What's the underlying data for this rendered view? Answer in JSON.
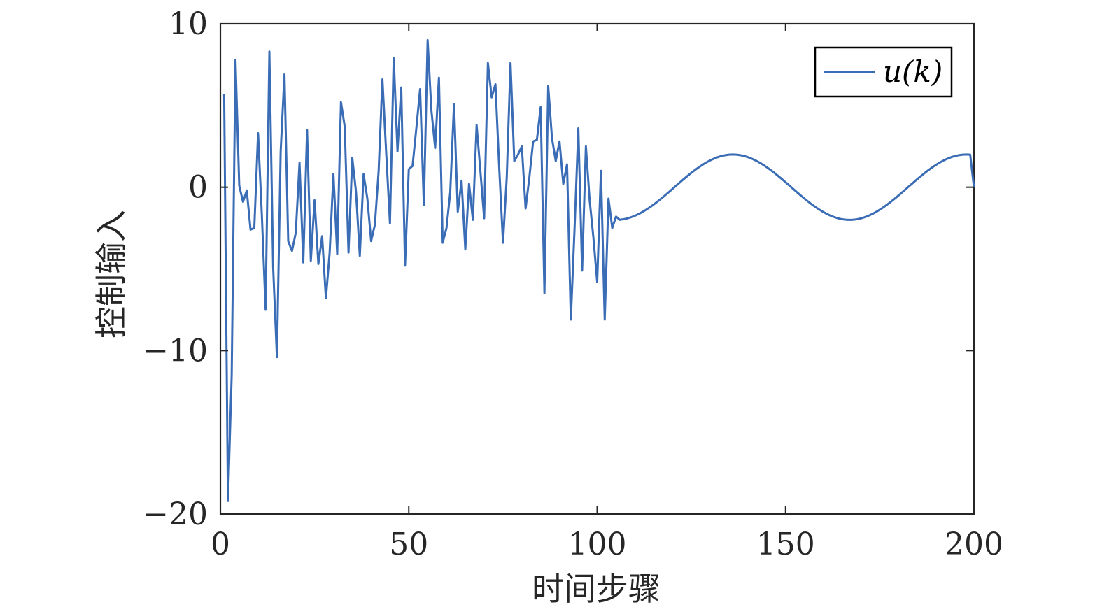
{
  "chart_data": {
    "type": "line",
    "title": "",
    "xlabel": "时间步骤",
    "ylabel": "控制输入",
    "xlim": [
      0,
      200
    ],
    "ylim": [
      -20,
      10
    ],
    "x_ticks": [
      0,
      50,
      100,
      150,
      200
    ],
    "y_ticks": [
      -20,
      -10,
      0,
      10
    ],
    "x_tick_labels": [
      "0",
      "50",
      "100",
      "150",
      "200"
    ],
    "y_tick_labels": [
      "−20",
      "−10",
      "0",
      "10"
    ],
    "grid": false,
    "legend": {
      "position": "top-right"
    },
    "series": [
      {
        "name": "u(k)",
        "color": "#3a6db5",
        "points": [
          [
            1,
            5.7
          ],
          [
            2,
            -19.2
          ],
          [
            3,
            -11.5
          ],
          [
            4,
            7.8
          ],
          [
            5,
            0.1
          ],
          [
            6,
            -0.9
          ],
          [
            7,
            -0.2
          ],
          [
            8,
            -2.6
          ],
          [
            9,
            -2.5
          ],
          [
            10,
            3.3
          ],
          [
            11,
            -1.7
          ],
          [
            12,
            -7.5
          ],
          [
            13,
            8.3
          ],
          [
            14,
            -4.9
          ],
          [
            15,
            -10.4
          ],
          [
            16,
            2.2
          ],
          [
            17,
            6.9
          ],
          [
            18,
            -3.3
          ],
          [
            19,
            -3.9
          ],
          [
            20,
            -2.8
          ],
          [
            21,
            1.5
          ],
          [
            22,
            -4.6
          ],
          [
            23,
            3.5
          ],
          [
            24,
            -4.5
          ],
          [
            25,
            -0.8
          ],
          [
            26,
            -4.7
          ],
          [
            27,
            -3.0
          ],
          [
            28,
            -6.8
          ],
          [
            29,
            -4.0
          ],
          [
            30,
            0.8
          ],
          [
            31,
            -4.1
          ],
          [
            32,
            5.2
          ],
          [
            33,
            3.7
          ],
          [
            34,
            -4.0
          ],
          [
            35,
            1.8
          ],
          [
            36,
            -0.3
          ],
          [
            37,
            -4.2
          ],
          [
            38,
            0.8
          ],
          [
            39,
            -0.7
          ],
          [
            40,
            -3.3
          ],
          [
            41,
            -2.3
          ],
          [
            42,
            1.0
          ],
          [
            43,
            6.6
          ],
          [
            44,
            2.1
          ],
          [
            45,
            -2.2
          ],
          [
            46,
            7.9
          ],
          [
            47,
            2.2
          ],
          [
            48,
            6.1
          ],
          [
            49,
            -4.8
          ],
          [
            50,
            1.1
          ],
          [
            51,
            1.3
          ],
          [
            52,
            3.6
          ],
          [
            53,
            6.0
          ],
          [
            54,
            -1.1
          ],
          [
            55,
            9.0
          ],
          [
            56,
            4.7
          ],
          [
            57,
            2.4
          ],
          [
            58,
            6.7
          ],
          [
            59,
            -3.4
          ],
          [
            60,
            -2.5
          ],
          [
            61,
            -0.3
          ],
          [
            62,
            5.1
          ],
          [
            63,
            -1.5
          ],
          [
            64,
            0.4
          ],
          [
            65,
            -3.8
          ],
          [
            66,
            0.2
          ],
          [
            67,
            -2.0
          ],
          [
            68,
            3.8
          ],
          [
            69,
            1.0
          ],
          [
            70,
            -1.9
          ],
          [
            71,
            7.6
          ],
          [
            72,
            5.5
          ],
          [
            73,
            6.3
          ],
          [
            74,
            1.2
          ],
          [
            75,
            -3.4
          ],
          [
            76,
            0.6
          ],
          [
            77,
            7.6
          ],
          [
            78,
            1.6
          ],
          [
            79,
            2.0
          ],
          [
            80,
            2.5
          ],
          [
            81,
            -1.3
          ],
          [
            82,
            0.6
          ],
          [
            83,
            2.8
          ],
          [
            84,
            2.9
          ],
          [
            85,
            4.9
          ],
          [
            86,
            -6.5
          ],
          [
            87,
            6.2
          ],
          [
            88,
            3.0
          ],
          [
            89,
            1.6
          ],
          [
            90,
            2.8
          ],
          [
            91,
            0.2
          ],
          [
            92,
            1.4
          ],
          [
            93,
            -8.1
          ],
          [
            94,
            -2.5
          ],
          [
            95,
            3.6
          ],
          [
            96,
            -5.1
          ],
          [
            97,
            2.5
          ],
          [
            98,
            -0.8
          ],
          [
            99,
            -3.1
          ],
          [
            100,
            -5.8
          ],
          [
            101,
            1.0
          ],
          [
            102,
            -8.1
          ],
          [
            103,
            -0.7
          ],
          [
            104,
            -2.5
          ],
          [
            105,
            -1.8
          ],
          [
            106,
            -2.0
          ]
        ],
        "smooth_segment": {
          "x_start": 106,
          "x_end": 199,
          "amplitude": 2.0,
          "peak_x": 136,
          "trough_x": 167
        },
        "end_point": [
          200,
          0.0
        ]
      }
    ]
  }
}
